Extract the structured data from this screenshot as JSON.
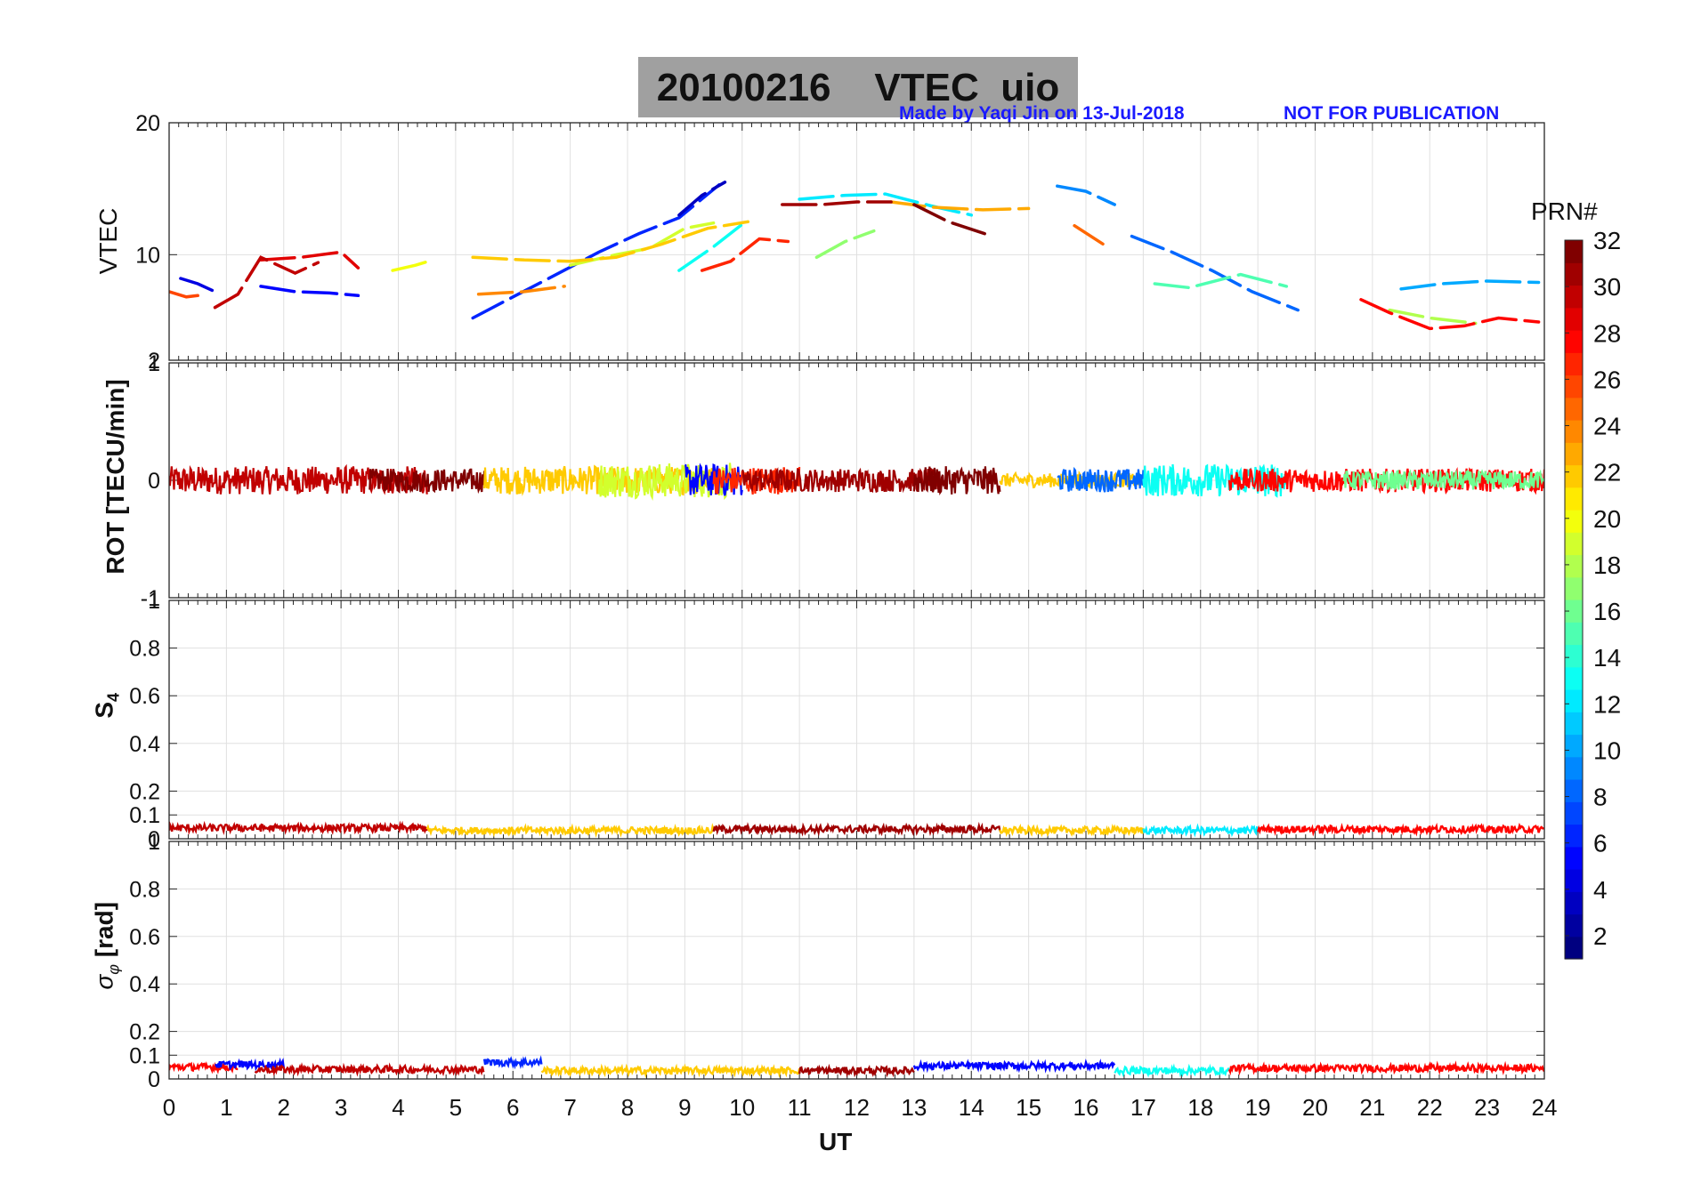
{
  "title": "20100216    VTEC  uio",
  "credit": {
    "made_by": "Made by Yaqi Jin on 13-Jul-2018",
    "notice": "NOT FOR PUBLICATION"
  },
  "colors": {
    "title_bg": "#a0a0a0",
    "credit": "#1a1aff",
    "grid": "#e0e0e0",
    "axis": "#262626"
  },
  "chart_data": [
    {
      "type": "scatter",
      "name": "VTEC panel",
      "ylabel": "VTEC",
      "xlim": [
        0,
        24
      ],
      "ylim": [
        2,
        20
      ],
      "ytick_labels": [
        "2",
        "10",
        "20"
      ],
      "ytick_values": [
        2,
        10,
        20
      ],
      "series": [
        {
          "name": "PRN 4",
          "prn": 4,
          "x": [
            0.2,
            0.5,
            0.8
          ],
          "y": [
            8.2,
            7.8,
            7.2
          ]
        },
        {
          "name": "PRN 5",
          "prn": 5,
          "x": [
            1.6,
            2.2,
            2.8,
            3.3
          ],
          "y": [
            7.6,
            7.2,
            7.1,
            6.9
          ]
        },
        {
          "name": "PRN 6",
          "prn": 6,
          "x": [
            5.3,
            6.0,
            6.8,
            7.5,
            8.2,
            8.9,
            9.6
          ],
          "y": [
            5.2,
            6.8,
            8.6,
            10.2,
            11.6,
            12.8,
            15.3
          ]
        },
        {
          "name": "PRN 3",
          "prn": 3,
          "x": [
            8.9,
            9.3,
            9.7
          ],
          "y": [
            13.0,
            14.5,
            15.5
          ]
        },
        {
          "name": "PRN 8",
          "prn": 8,
          "x": [
            16.8,
            17.5,
            18.2,
            18.9,
            19.7
          ],
          "y": [
            11.4,
            10.2,
            8.8,
            7.2,
            5.8
          ]
        },
        {
          "name": "PRN 9",
          "prn": 9,
          "x": [
            15.5,
            16.0,
            16.5
          ],
          "y": [
            15.2,
            14.8,
            13.8
          ]
        },
        {
          "name": "PRN 10",
          "prn": 10,
          "x": [
            21.5,
            22.2,
            23.0,
            23.9
          ],
          "y": [
            7.4,
            7.8,
            8.0,
            7.9
          ]
        },
        {
          "name": "PRN 12",
          "prn": 12,
          "x": [
            11.0,
            11.8,
            12.5,
            13.3,
            14.0
          ],
          "y": [
            14.2,
            14.5,
            14.6,
            13.7,
            13.0
          ]
        },
        {
          "name": "PRN 13",
          "prn": 13,
          "x": [
            8.9,
            9.5,
            10.0
          ],
          "y": [
            8.8,
            10.6,
            12.3
          ]
        },
        {
          "name": "PRN 15",
          "prn": 15,
          "x": [
            17.2,
            17.8,
            18.7,
            19.5
          ],
          "y": [
            7.8,
            7.5,
            8.5,
            7.6
          ]
        },
        {
          "name": "PRN 17",
          "prn": 17,
          "x": [
            11.3,
            11.8,
            12.3
          ],
          "y": [
            9.8,
            11.0,
            11.8
          ]
        },
        {
          "name": "PRN 18",
          "prn": 18,
          "x": [
            21.3,
            22.0,
            22.8
          ],
          "y": [
            5.8,
            5.2,
            4.8
          ]
        },
        {
          "name": "PRN 19",
          "prn": 19,
          "x": [
            7.0,
            7.8,
            8.4,
            9.0,
            9.5
          ],
          "y": [
            9.2,
            10.0,
            10.5,
            12.0,
            12.4
          ]
        },
        {
          "name": "PRN 20",
          "prn": 20,
          "x": [
            3.9,
            4.3,
            4.6
          ],
          "y": [
            8.8,
            9.2,
            9.6
          ]
        },
        {
          "name": "PRN 22",
          "prn": 22,
          "x": [
            5.3,
            6.2,
            7.0,
            7.8,
            8.6,
            9.4,
            10.1
          ],
          "y": [
            9.8,
            9.6,
            9.5,
            9.8,
            10.8,
            12.0,
            12.5
          ]
        },
        {
          "name": "PRN 23",
          "prn": 23,
          "x": [
            12.6,
            13.3,
            14.2,
            15.0
          ],
          "y": [
            14.0,
            13.6,
            13.4,
            13.5
          ]
        },
        {
          "name": "PRN 24",
          "prn": 24,
          "x": [
            5.4,
            6.2,
            6.9
          ],
          "y": [
            7.0,
            7.2,
            7.6
          ]
        },
        {
          "name": "PRN 25",
          "prn": 25,
          "x": [
            15.8,
            16.3
          ],
          "y": [
            12.2,
            10.8
          ]
        },
        {
          "name": "PRN 26",
          "prn": 26,
          "x": [
            0.0,
            0.3,
            0.5
          ],
          "y": [
            7.2,
            6.8,
            6.9
          ]
        },
        {
          "name": "PRN 27",
          "prn": 27,
          "x": [
            9.3,
            9.8,
            10.3,
            10.8
          ],
          "y": [
            8.8,
            9.5,
            11.2,
            11.0
          ]
        },
        {
          "name": "PRN 28",
          "prn": 28,
          "x": [
            20.8,
            21.3,
            22.0,
            22.6,
            23.2,
            23.9
          ],
          "y": [
            6.6,
            5.6,
            4.4,
            4.6,
            5.2,
            4.9
          ]
        },
        {
          "name": "PRN 29",
          "prn": 29,
          "x": [
            1.6,
            2.3,
            3.0,
            3.3
          ],
          "y": [
            9.6,
            9.8,
            10.2,
            9.0
          ]
        },
        {
          "name": "PRN 30",
          "prn": 30,
          "x": [
            0.8,
            1.2,
            1.6,
            2.2,
            2.6
          ],
          "y": [
            6.0,
            7.0,
            9.8,
            8.6,
            9.4
          ]
        },
        {
          "name": "PRN 31",
          "prn": 31,
          "x": [
            10.7,
            11.4,
            12.0,
            12.6
          ],
          "y": [
            13.8,
            13.8,
            14.0,
            14.0
          ]
        },
        {
          "name": "PRN 32",
          "prn": 32,
          "x": [
            13.0,
            13.6,
            14.3
          ],
          "y": [
            13.8,
            12.5,
            11.5
          ]
        }
      ]
    },
    {
      "type": "line",
      "name": "ROT panel",
      "ylabel": "ROT [TECU/min]",
      "xlim": [
        0,
        24
      ],
      "ylim": [
        -1,
        1
      ],
      "ytick_labels": [
        "-1",
        "0",
        "1"
      ],
      "ytick_values": [
        -1,
        0,
        1
      ],
      "description_of_values": "all PRNs fluctuate within about ±0.2 TECU/min around 0",
      "series_ranges": [
        {
          "prn": 30,
          "x_start": 0.0,
          "x_end": 4.5,
          "amplitude": 0.12
        },
        {
          "prn": 32,
          "x_start": 3.5,
          "x_end": 5.5,
          "amplitude": 0.1
        },
        {
          "prn": 22,
          "x_start": 5.5,
          "x_end": 9.5,
          "amplitude": 0.12
        },
        {
          "prn": 19,
          "x_start": 7.5,
          "x_end": 9.8,
          "amplitude": 0.15
        },
        {
          "prn": 5,
          "x_start": 9.0,
          "x_end": 10.0,
          "amplitude": 0.14
        },
        {
          "prn": 27,
          "x_start": 9.5,
          "x_end": 11.0,
          "amplitude": 0.12
        },
        {
          "prn": 31,
          "x_start": 10.0,
          "x_end": 13.5,
          "amplitude": 0.1
        },
        {
          "prn": 32,
          "x_start": 13.0,
          "x_end": 14.5,
          "amplitude": 0.12
        },
        {
          "prn": 22,
          "x_start": 14.5,
          "x_end": 17.0,
          "amplitude": 0.06
        },
        {
          "prn": 8,
          "x_start": 15.5,
          "x_end": 17.0,
          "amplitude": 0.1
        },
        {
          "prn": 13,
          "x_start": 17.0,
          "x_end": 19.5,
          "amplitude": 0.14
        },
        {
          "prn": 28,
          "x_start": 18.5,
          "x_end": 24.0,
          "amplitude": 0.1
        },
        {
          "prn": 16,
          "x_start": 20.5,
          "x_end": 24.0,
          "amplitude": 0.08
        }
      ]
    },
    {
      "type": "line",
      "name": "S4 panel",
      "ylabel": "S4",
      "xlim": [
        0,
        24
      ],
      "ylim": [
        0,
        1
      ],
      "ytick_labels": [
        "0",
        "0.1",
        "0.2",
        "0.4",
        "0.6",
        "0.8",
        "1"
      ],
      "ytick_values": [
        0,
        0.1,
        0.2,
        0.4,
        0.6,
        0.8,
        1
      ],
      "description_of_values": "S4 stays near 0.03–0.06 for all PRNs with spikes up to about 0.1",
      "series_ranges": [
        {
          "prn": 30,
          "x_start": 0.0,
          "x_end": 4.5,
          "level": 0.045
        },
        {
          "prn": 22,
          "x_start": 4.5,
          "x_end": 9.5,
          "level": 0.035
        },
        {
          "prn": 31,
          "x_start": 9.5,
          "x_end": 14.5,
          "level": 0.04
        },
        {
          "prn": 22,
          "x_start": 14.5,
          "x_end": 17.0,
          "level": 0.035
        },
        {
          "prn": 12,
          "x_start": 17.0,
          "x_end": 19.0,
          "level": 0.035
        },
        {
          "prn": 28,
          "x_start": 19.0,
          "x_end": 24.0,
          "level": 0.04
        }
      ]
    },
    {
      "type": "line",
      "name": "sigma phi panel",
      "ylabel": "σ_φ [rad]",
      "xlabel": "UT",
      "xlim": [
        0,
        24
      ],
      "ylim": [
        0,
        1
      ],
      "ytick_labels": [
        "0",
        "0.1",
        "0.2",
        "0.4",
        "0.6",
        "0.8",
        "1"
      ],
      "ytick_values": [
        0,
        0.1,
        0.2,
        0.4,
        0.6,
        0.8,
        1
      ],
      "xtick_labels": [
        "0",
        "1",
        "2",
        "3",
        "4",
        "5",
        "6",
        "7",
        "8",
        "9",
        "10",
        "11",
        "12",
        "13",
        "14",
        "15",
        "16",
        "17",
        "18",
        "19",
        "20",
        "21",
        "22",
        "23",
        "24"
      ],
      "description_of_values": "σφ stays near 0.03–0.06 rad with small bumps up to about 0.1",
      "series_ranges": [
        {
          "prn": 28,
          "x_start": 0.0,
          "x_end": 1.2,
          "level": 0.05
        },
        {
          "prn": 5,
          "x_start": 0.8,
          "x_end": 2.0,
          "level": 0.06
        },
        {
          "prn": 30,
          "x_start": 1.5,
          "x_end": 5.5,
          "level": 0.04
        },
        {
          "prn": 6,
          "x_start": 5.5,
          "x_end": 6.5,
          "level": 0.07
        },
        {
          "prn": 22,
          "x_start": 6.5,
          "x_end": 11.0,
          "level": 0.035
        },
        {
          "prn": 31,
          "x_start": 11.0,
          "x_end": 13.0,
          "level": 0.035
        },
        {
          "prn": 5,
          "x_start": 13.0,
          "x_end": 16.5,
          "level": 0.055
        },
        {
          "prn": 13,
          "x_start": 16.5,
          "x_end": 18.5,
          "level": 0.035
        },
        {
          "prn": 28,
          "x_start": 18.5,
          "x_end": 24.0,
          "level": 0.045
        }
      ]
    }
  ],
  "colorbar": {
    "label": "PRN#",
    "min": 1,
    "max": 32,
    "tick_labels": [
      "2",
      "4",
      "6",
      "8",
      "10",
      "12",
      "14",
      "16",
      "18",
      "20",
      "22",
      "24",
      "26",
      "28",
      "30",
      "32"
    ],
    "tick_values": [
      2,
      4,
      6,
      8,
      10,
      12,
      14,
      16,
      18,
      20,
      22,
      24,
      26,
      28,
      30,
      32
    ]
  },
  "labels": {
    "vtec_ylabel": "VTEC",
    "rot_ylabel": "ROT [TECU/min]",
    "s4_ylabel": "S",
    "s4_sub": "4",
    "sigma_ylabel": "σ",
    "sigma_sub": "φ",
    "sigma_unit": " [rad]",
    "xlabel": "UT"
  }
}
